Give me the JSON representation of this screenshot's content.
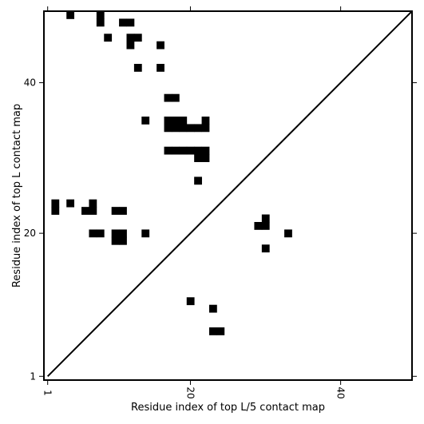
{
  "chart_data": {
    "type": "heatmap",
    "title": "",
    "xlabel": "Residue index of top L/5 contact map",
    "ylabel": "Residue index of top L contact map",
    "xticks": [
      1,
      20,
      40
    ],
    "yticks": [
      1,
      20,
      40
    ],
    "xlim": [
      0.5,
      49.5
    ],
    "ylim": [
      0.5,
      49.5
    ],
    "grid": false,
    "diagonal_line": true,
    "cell_color": "#000000",
    "background_color": "#ffffff",
    "cells": [
      [
        4,
        49
      ],
      [
        8,
        49
      ],
      [
        8,
        48
      ],
      [
        11,
        48
      ],
      [
        12,
        48
      ],
      [
        9,
        46
      ],
      [
        12,
        46
      ],
      [
        13,
        46
      ],
      [
        12,
        45
      ],
      [
        16,
        45
      ],
      [
        13,
        42
      ],
      [
        16,
        42
      ],
      [
        17,
        38
      ],
      [
        18,
        38
      ],
      [
        14,
        35
      ],
      [
        17,
        35
      ],
      [
        18,
        35
      ],
      [
        19,
        35
      ],
      [
        22,
        35
      ],
      [
        17,
        34
      ],
      [
        18,
        34
      ],
      [
        19,
        34
      ],
      [
        20,
        34
      ],
      [
        21,
        34
      ],
      [
        22,
        34
      ],
      [
        17,
        31
      ],
      [
        18,
        31
      ],
      [
        19,
        31
      ],
      [
        20,
        31
      ],
      [
        21,
        31
      ],
      [
        22,
        31
      ],
      [
        21,
        30
      ],
      [
        22,
        30
      ],
      [
        21,
        27
      ],
      [
        2,
        24
      ],
      [
        4,
        24
      ],
      [
        7,
        24
      ],
      [
        2,
        23
      ],
      [
        6,
        23
      ],
      [
        7,
        23
      ],
      [
        10,
        23
      ],
      [
        11,
        23
      ],
      [
        30,
        22
      ],
      [
        29,
        21
      ],
      [
        30,
        21
      ],
      [
        7,
        20
      ],
      [
        8,
        20
      ],
      [
        10,
        20
      ],
      [
        11,
        20
      ],
      [
        14,
        20
      ],
      [
        33,
        20
      ],
      [
        10,
        19
      ],
      [
        11,
        19
      ],
      [
        30,
        18
      ],
      [
        20,
        11
      ],
      [
        23,
        10
      ],
      [
        23,
        7
      ],
      [
        24,
        7
      ]
    ]
  }
}
